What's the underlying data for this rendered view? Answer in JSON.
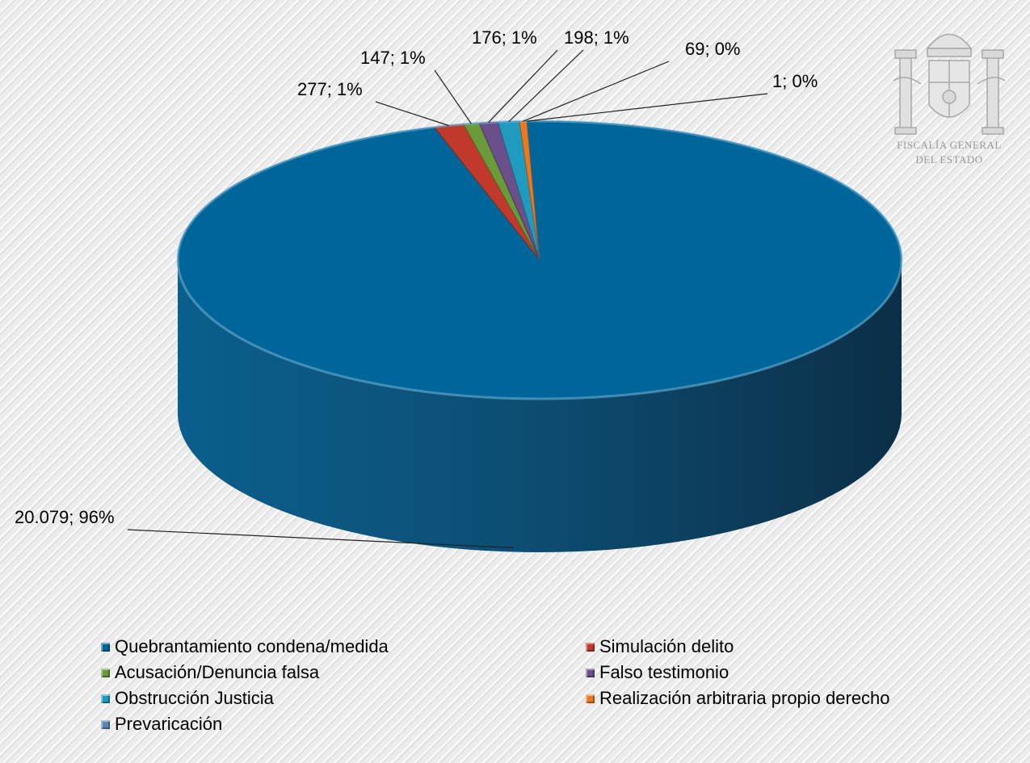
{
  "emblem": {
    "line1": "FISCALÍA GENERAL",
    "line2": "DEL ESTADO"
  },
  "chart_data": {
    "type": "pie",
    "style": "3d",
    "title": "",
    "legend_position": "bottom",
    "slices": [
      {
        "name": "Quebrantamiento condena/medida",
        "value": 20079,
        "label": "20.079; 96%",
        "color": "#006699"
      },
      {
        "name": "Simulación delito",
        "value": 277,
        "label": "277; 1%",
        "color": "#c0392b"
      },
      {
        "name": "Acusación/Denuncia falsa",
        "value": 147,
        "label": "147; 1%",
        "color": "#6a9a3a"
      },
      {
        "name": "Falso testimonio",
        "value": 176,
        "label": "176; 1%",
        "color": "#6b4f8a"
      },
      {
        "name": "Obstrucción Justicia",
        "value": 198,
        "label": "198; 1%",
        "color": "#1f9bbf"
      },
      {
        "name": "Realización arbitraria propio derecho",
        "value": 69,
        "label": "69; 0%",
        "color": "#e8791f"
      },
      {
        "name": "Prevaricación",
        "value": 1,
        "label": "1; 0%",
        "color": "#5b85b7"
      }
    ]
  }
}
